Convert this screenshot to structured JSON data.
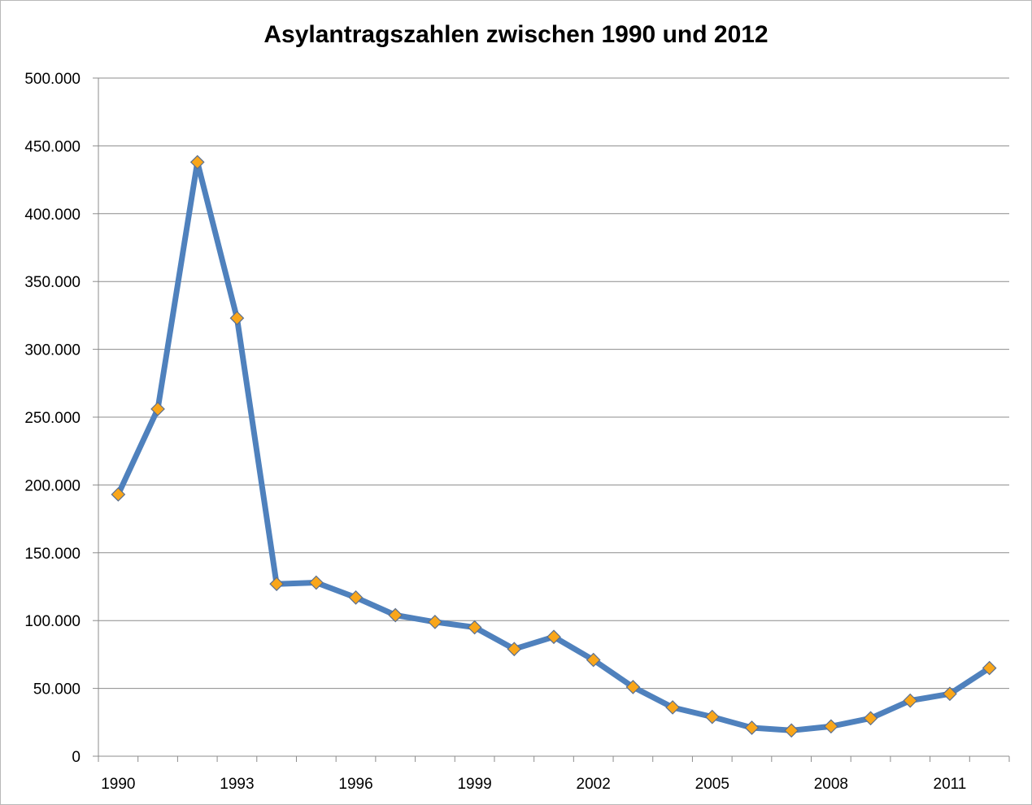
{
  "chart_data": {
    "type": "line",
    "title": "Asylantragszahlen zwischen 1990 und 2012",
    "xlabel": "",
    "ylabel": "",
    "x": [
      1990,
      1991,
      1992,
      1993,
      1994,
      1995,
      1996,
      1997,
      1998,
      1999,
      2000,
      2001,
      2002,
      2003,
      2004,
      2005,
      2006,
      2007,
      2008,
      2009,
      2010,
      2011,
      2012
    ],
    "x_tick_labels": [
      "1990",
      "1993",
      "1996",
      "1999",
      "2002",
      "2005",
      "2008",
      "2011"
    ],
    "series": [
      {
        "values": [
          193000,
          256000,
          438000,
          323000,
          127000,
          128000,
          117000,
          104000,
          99000,
          95000,
          79000,
          88000,
          71000,
          51000,
          36000,
          29000,
          21000,
          19000,
          22000,
          28000,
          41000,
          46000,
          65000
        ],
        "line_color": "#4f81bd",
        "marker": "diamond",
        "marker_color": "#f9a61a"
      }
    ],
    "ylim": [
      0,
      500000
    ],
    "y_tick_labels": [
      "0",
      "50.000",
      "100.000",
      "150.000",
      "200.000",
      "250.000",
      "300.000",
      "350.000",
      "400.000",
      "450.000",
      "500.000"
    ],
    "grid": "horizontal",
    "legend": "none"
  }
}
